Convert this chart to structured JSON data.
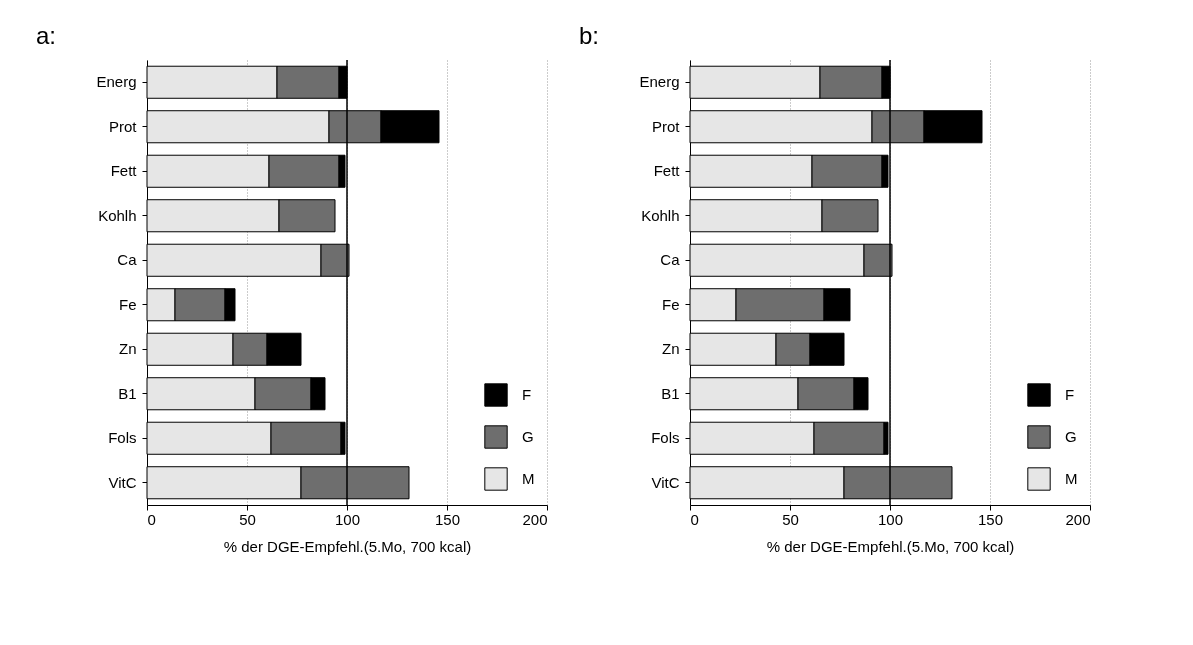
{
  "chart_data": [
    {
      "type": "bar",
      "title": "a:",
      "orientation": "horizontal",
      "stacked": true,
      "xlabel": "% der DGE-Empfehl.(5.Mo, 700 kcal)",
      "categories": [
        "Energ",
        "Prot",
        "Fett",
        "Kohlh",
        "Ca",
        "Fe",
        "Zn",
        "B1",
        "Fols",
        "VitC"
      ],
      "series": [
        {
          "name": "M",
          "color": "#e6e6e6",
          "values": [
            65,
            91,
            61,
            66,
            87,
            14,
            43,
            54,
            62,
            77
          ]
        },
        {
          "name": "G",
          "color": "#6e6e6e",
          "values": [
            31,
            26,
            35,
            28,
            14,
            25,
            17,
            28,
            35,
            54
          ]
        },
        {
          "name": "F",
          "color": "#000000",
          "values": [
            4,
            29,
            3,
            null,
            null,
            5,
            17,
            7,
            2,
            null
          ]
        }
      ],
      "xlim": [
        0,
        200
      ],
      "xticks": [
        0,
        50,
        100,
        150,
        200
      ],
      "grid": "x",
      "legend": "bottom right",
      "ref_lines": [
        {
          "axis": "x",
          "value": 100,
          "color": "#000000"
        }
      ]
    },
    {
      "type": "bar",
      "title": "b:",
      "orientation": "horizontal",
      "stacked": true,
      "xlabel": "% der DGE-Empfehl.(5.Mo, 700 kcal)",
      "categories": [
        "Energ",
        "Prot",
        "Fett",
        "Kohlh",
        "Ca",
        "Fe",
        "Zn",
        "B1",
        "Fols",
        "VitC"
      ],
      "series": [
        {
          "name": "M",
          "color": "#e6e6e6",
          "values": [
            65,
            91,
            61,
            66,
            87,
            23,
            43,
            54,
            62,
            77
          ]
        },
        {
          "name": "G",
          "color": "#6e6e6e",
          "values": [
            31,
            26,
            35,
            28,
            14,
            44,
            17,
            28,
            35,
            54
          ]
        },
        {
          "name": "F",
          "color": "#000000",
          "values": [
            4,
            29,
            3,
            null,
            null,
            13,
            17,
            7,
            2,
            null
          ]
        }
      ],
      "xlim": [
        0,
        200
      ],
      "xticks": [
        0,
        50,
        100,
        150,
        200
      ],
      "grid": "x",
      "legend": "bottom right",
      "ref_lines": [
        {
          "axis": "x",
          "value": 100,
          "color": "#000000"
        }
      ]
    }
  ]
}
